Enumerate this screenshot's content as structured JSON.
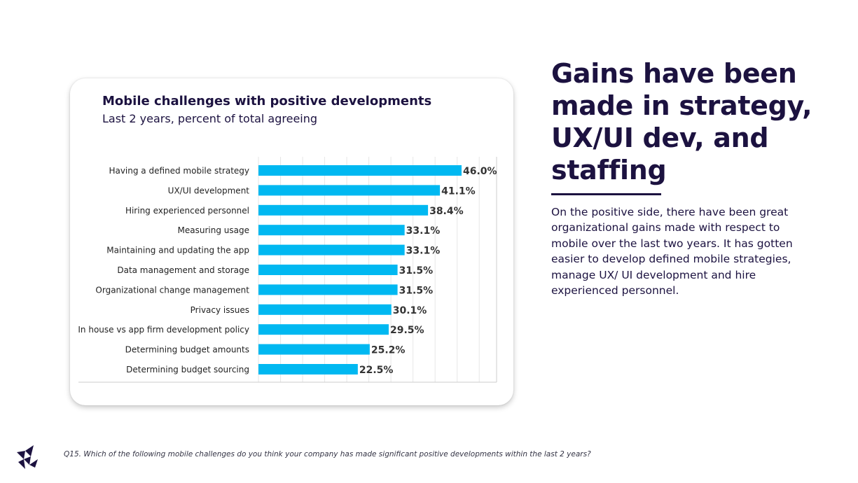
{
  "headline": "Gains have been made in strategy, UX/UI dev, and staffing",
  "body_text": "On the positive side, there have been great organizational gains made with respect to mobile over the last two years. It has gotten easier to develop defined mobile strategies, manage UX/ UI development and hire experienced personnel.",
  "footnote": "Q15. Which of the following mobile challenges do you think your company has made significant positive developments within the last 2 years?",
  "colors": {
    "bar": "#00b8f1",
    "navy": "#1c1240",
    "grid": "#e6e6e6"
  },
  "chart_data": {
    "type": "bar",
    "orientation": "horizontal",
    "title": "Mobile challenges with positive developments",
    "subtitle": "Last 2 years, percent of total agreeing",
    "categories": [
      "Having a defined mobile strategy",
      "UX/UI development",
      "Hiring experienced personnel",
      "Measuring usage",
      "Maintaining and updating the app",
      "Data management and storage",
      "Organizational change management",
      "Privacy issues",
      "In house vs app firm development policy",
      "Determining budget amounts",
      "Determining budget sourcing"
    ],
    "values": [
      46.0,
      41.1,
      38.4,
      33.1,
      33.1,
      31.5,
      31.5,
      30.1,
      29.5,
      25.2,
      22.5
    ],
    "value_labels": [
      "46.0%",
      "41.1%",
      "38.4%",
      "33.1%",
      "33.1%",
      "31.5%",
      "31.5%",
      "30.1%",
      "29.5%",
      "25.2%",
      "22.5%"
    ],
    "xlim": [
      0,
      55
    ],
    "grid": true,
    "legend": "none"
  }
}
